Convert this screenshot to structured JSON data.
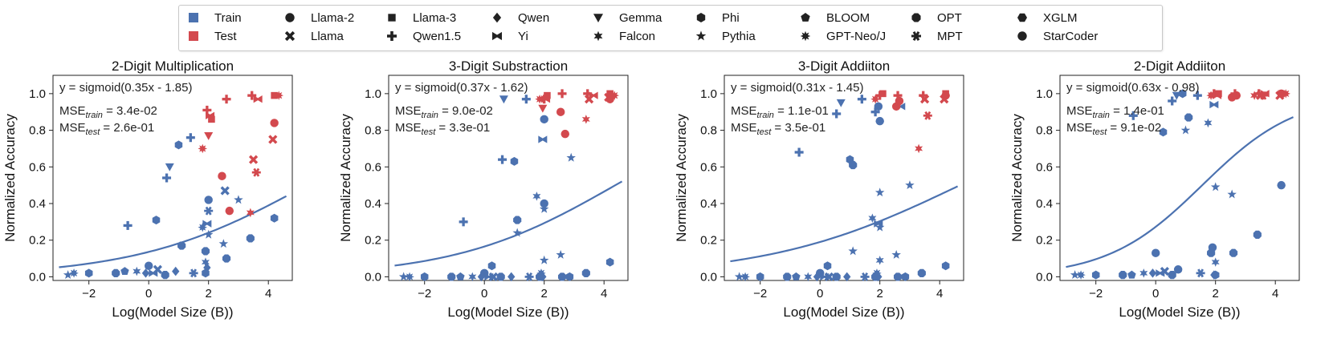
{
  "colors": {
    "train": "#4C72B0",
    "test": "#D3494E",
    "axis": "#222222",
    "fit": "#4C72B0"
  },
  "legend": {
    "split": [
      {
        "label": "Train",
        "color": "#4C72B0"
      },
      {
        "label": "Test",
        "color": "#D3494E"
      }
    ],
    "models": [
      {
        "label": "Llama-2",
        "marker": "circle"
      },
      {
        "label": "Llama",
        "marker": "x"
      },
      {
        "label": "Llama-3",
        "marker": "square"
      },
      {
        "label": "Qwen1.5",
        "marker": "plus"
      },
      {
        "label": "Qwen",
        "marker": "diamond"
      },
      {
        "label": "Yi",
        "marker": "bowtie"
      },
      {
        "label": "Gemma",
        "marker": "triangle-down"
      },
      {
        "label": "Falcon",
        "marker": "star6"
      },
      {
        "label": "Phi",
        "marker": "hexagon"
      },
      {
        "label": "Pythia",
        "marker": "star5"
      },
      {
        "label": "BLOOM",
        "marker": "pentagon"
      },
      {
        "label": "GPT-Neo/J",
        "marker": "star8"
      },
      {
        "label": "OPT",
        "marker": "octagon"
      },
      {
        "label": "MPT",
        "marker": "asterisk"
      },
      {
        "label": "XGLM",
        "marker": "hexagon2"
      },
      {
        "label": "StarCoder",
        "marker": "circle"
      }
    ]
  },
  "chart_data": [
    {
      "type": "scatter",
      "title": "2-Digit Multiplication",
      "xlabel": "Log(Model Size (B))",
      "ylabel": "Normalized Accuracy",
      "xlim": [
        -3.2,
        4.8
      ],
      "ylim": [
        -0.02,
        1.1
      ],
      "xticks": [
        -2,
        0,
        2,
        4
      ],
      "xtick_labels": [
        "−2",
        "0",
        "2",
        "4"
      ],
      "yticks": [
        0.0,
        0.2,
        0.4,
        0.6,
        0.8,
        1.0
      ],
      "ytick_labels": [
        "0.0",
        "0.2",
        "0.4",
        "0.6",
        "0.8",
        "1.0"
      ],
      "fit": {
        "a": 0.35,
        "b": -1.85,
        "x_range": [
          -3.0,
          4.6
        ]
      },
      "annotation": {
        "formula": "y = sigmoid(0.35x - 1.85)",
        "mse_train": "= 3.4e-02",
        "mse_test": "= 2.6e-01"
      },
      "train": [
        [
          -2.7,
          0.01,
          "star5"
        ],
        [
          -2.5,
          0.02,
          "star8"
        ],
        [
          -2.0,
          0.02,
          "hexagon"
        ],
        [
          -1.1,
          0.02,
          "octagon"
        ],
        [
          -0.8,
          0.03,
          "pentagon"
        ],
        [
          -0.7,
          0.28,
          "plus"
        ],
        [
          -0.4,
          0.03,
          "star6"
        ],
        [
          -0.1,
          0.02,
          "diamond"
        ],
        [
          0.0,
          0.06,
          "circle"
        ],
        [
          0.15,
          0.02,
          "bowtie"
        ],
        [
          0.25,
          0.31,
          "hexagon"
        ],
        [
          0.3,
          0.04,
          "x"
        ],
        [
          0.55,
          0.01,
          "octagon"
        ],
        [
          0.6,
          0.54,
          "plus"
        ],
        [
          0.7,
          0.6,
          "triangle-down"
        ],
        [
          0.9,
          0.03,
          "diamond"
        ],
        [
          1.0,
          0.72,
          "hexagon"
        ],
        [
          1.1,
          0.17,
          "octagon"
        ],
        [
          1.4,
          0.76,
          "plus"
        ],
        [
          1.5,
          0.02,
          "asterisk"
        ],
        [
          1.8,
          0.27,
          "star8"
        ],
        [
          1.9,
          0.14,
          "octagon"
        ],
        [
          1.9,
          0.08,
          "star6"
        ],
        [
          1.9,
          0.02,
          "hexagon"
        ],
        [
          1.95,
          0.05,
          "diamond"
        ],
        [
          1.95,
          0.29,
          "bowtie"
        ],
        [
          2.0,
          0.36,
          "asterisk"
        ],
        [
          2.0,
          0.42,
          "circle"
        ],
        [
          2.0,
          0.23,
          "star5"
        ],
        [
          2.5,
          0.18,
          "star5"
        ],
        [
          2.55,
          0.47,
          "x"
        ],
        [
          2.6,
          0.1,
          "octagon"
        ],
        [
          3.0,
          0.42,
          "star5"
        ],
        [
          3.4,
          0.21,
          "octagon"
        ],
        [
          4.2,
          0.32,
          "hexagon"
        ]
      ],
      "test": [
        [
          1.8,
          0.7,
          "star8"
        ],
        [
          1.95,
          0.91,
          "plus"
        ],
        [
          2.0,
          0.77,
          "triangle-down"
        ],
        [
          2.05,
          0.88,
          "bowtie"
        ],
        [
          2.1,
          0.86,
          "square"
        ],
        [
          2.45,
          0.55,
          "circle"
        ],
        [
          2.6,
          0.97,
          "plus"
        ],
        [
          2.7,
          0.36,
          "circle"
        ],
        [
          3.4,
          0.35,
          "star6"
        ],
        [
          3.45,
          0.99,
          "plus"
        ],
        [
          3.5,
          0.64,
          "x"
        ],
        [
          3.6,
          0.57,
          "asterisk"
        ],
        [
          3.65,
          0.97,
          "bowtie"
        ],
        [
          4.15,
          0.75,
          "x"
        ],
        [
          4.2,
          0.84,
          "circle"
        ],
        [
          4.2,
          0.99,
          "square"
        ],
        [
          4.35,
          0.99,
          "star8"
        ]
      ]
    },
    {
      "type": "scatter",
      "title": "3-Digit Substraction",
      "xlabel": "Log(Model Size (B))",
      "ylabel": "Normalized Accuracy",
      "xlim": [
        -3.2,
        4.8
      ],
      "ylim": [
        -0.02,
        1.1
      ],
      "xticks": [
        -2,
        0,
        2,
        4
      ],
      "xtick_labels": [
        "−2",
        "0",
        "2",
        "4"
      ],
      "yticks": [
        0.0,
        0.2,
        0.4,
        0.6,
        0.8,
        1.0
      ],
      "ytick_labels": [
        "0.0",
        "0.2",
        "0.4",
        "0.6",
        "0.8",
        "1.0"
      ],
      "fit": {
        "a": 0.37,
        "b": -1.62,
        "x_range": [
          -3.0,
          4.6
        ]
      },
      "annotation": {
        "formula": "y = sigmoid(0.37x - 1.62)",
        "mse_train": "= 9.0e-02",
        "mse_test": "= 3.3e-01"
      },
      "train": [
        [
          -2.7,
          0.0,
          "star5"
        ],
        [
          -2.5,
          0.0,
          "star8"
        ],
        [
          -2.0,
          0.0,
          "hexagon"
        ],
        [
          -1.1,
          0.0,
          "octagon"
        ],
        [
          -0.8,
          0.0,
          "pentagon"
        ],
        [
          -0.7,
          0.3,
          "plus"
        ],
        [
          -0.4,
          0.0,
          "star6"
        ],
        [
          -0.1,
          0.0,
          "diamond"
        ],
        [
          0.0,
          0.02,
          "circle"
        ],
        [
          0.15,
          0.0,
          "bowtie"
        ],
        [
          0.25,
          0.06,
          "hexagon"
        ],
        [
          0.3,
          0.0,
          "x"
        ],
        [
          0.55,
          0.0,
          "octagon"
        ],
        [
          0.6,
          0.64,
          "plus"
        ],
        [
          0.9,
          0.0,
          "diamond"
        ],
        [
          1.0,
          0.63,
          "hexagon"
        ],
        [
          1.1,
          0.31,
          "octagon"
        ],
        [
          1.1,
          0.24,
          "star5"
        ],
        [
          1.4,
          0.97,
          "plus"
        ],
        [
          1.5,
          0.0,
          "asterisk"
        ],
        [
          1.75,
          0.44,
          "star6"
        ],
        [
          1.85,
          0.0,
          "octagon"
        ],
        [
          1.9,
          0.02,
          "star8"
        ],
        [
          1.95,
          0.0,
          "diamond"
        ],
        [
          1.95,
          0.75,
          "bowtie"
        ],
        [
          2.0,
          0.4,
          "circle"
        ],
        [
          2.0,
          0.86,
          "circle"
        ],
        [
          2.0,
          0.37,
          "star5"
        ],
        [
          2.0,
          0.09,
          "star5"
        ],
        [
          2.55,
          0.12,
          "star5"
        ],
        [
          2.6,
          0.0,
          "octagon"
        ],
        [
          2.85,
          0.0,
          "hexagon"
        ],
        [
          2.9,
          0.65,
          "star5"
        ],
        [
          3.4,
          0.02,
          "octagon"
        ],
        [
          4.2,
          0.08,
          "hexagon"
        ],
        [
          0.65,
          0.97,
          "triangle-down"
        ]
      ],
      "test": [
        [
          1.85,
          0.97,
          "star8"
        ],
        [
          1.95,
          0.92,
          "triangle-down"
        ],
        [
          2.0,
          0.97,
          "plus"
        ],
        [
          2.05,
          0.97,
          "bowtie"
        ],
        [
          2.1,
          0.99,
          "square"
        ],
        [
          2.55,
          0.9,
          "circle"
        ],
        [
          2.6,
          1.0,
          "plus"
        ],
        [
          2.7,
          0.78,
          "circle"
        ],
        [
          3.4,
          0.86,
          "star6"
        ],
        [
          3.45,
          1.0,
          "plus"
        ],
        [
          3.5,
          0.97,
          "x"
        ],
        [
          3.65,
          0.99,
          "bowtie"
        ],
        [
          4.15,
          0.98,
          "x"
        ],
        [
          4.2,
          0.97,
          "circle"
        ],
        [
          4.2,
          1.0,
          "square"
        ],
        [
          4.35,
          0.99,
          "star8"
        ]
      ]
    },
    {
      "type": "scatter",
      "title": "3-Digit Addiiton",
      "xlabel": "Log(Model Size (B))",
      "ylabel": "Normalized Accuracy",
      "xlim": [
        -3.2,
        4.8
      ],
      "ylim": [
        -0.02,
        1.1
      ],
      "xticks": [
        -2,
        0,
        2,
        4
      ],
      "xtick_labels": [
        "−2",
        "0",
        "2",
        "4"
      ],
      "yticks": [
        0.0,
        0.2,
        0.4,
        0.6,
        0.8,
        1.0
      ],
      "ytick_labels": [
        "0.0",
        "0.2",
        "0.4",
        "0.6",
        "0.8",
        "1.0"
      ],
      "fit": {
        "a": 0.31,
        "b": -1.45,
        "x_range": [
          -3.0,
          4.6
        ]
      },
      "annotation": {
        "formula": "y = sigmoid(0.31x - 1.45)",
        "mse_train": "= 1.1e-01",
        "mse_test": "= 3.5e-01"
      },
      "train": [
        [
          -2.7,
          0.0,
          "star5"
        ],
        [
          -2.5,
          0.0,
          "star8"
        ],
        [
          -2.0,
          0.0,
          "hexagon"
        ],
        [
          -1.1,
          0.0,
          "octagon"
        ],
        [
          -0.8,
          0.0,
          "pentagon"
        ],
        [
          -0.7,
          0.68,
          "plus"
        ],
        [
          -0.4,
          0.0,
          "star6"
        ],
        [
          -0.1,
          0.0,
          "diamond"
        ],
        [
          0.0,
          0.02,
          "circle"
        ],
        [
          0.15,
          0.0,
          "bowtie"
        ],
        [
          0.25,
          0.06,
          "hexagon"
        ],
        [
          0.3,
          0.0,
          "x"
        ],
        [
          0.55,
          0.0,
          "octagon"
        ],
        [
          0.55,
          0.89,
          "plus"
        ],
        [
          0.7,
          0.95,
          "triangle-down"
        ],
        [
          0.9,
          0.0,
          "diamond"
        ],
        [
          1.0,
          0.64,
          "hexagon"
        ],
        [
          1.1,
          0.61,
          "octagon"
        ],
        [
          1.1,
          0.14,
          "star5"
        ],
        [
          1.4,
          0.97,
          "plus"
        ],
        [
          1.5,
          0.0,
          "asterisk"
        ],
        [
          1.75,
          0.32,
          "star6"
        ],
        [
          1.85,
          0.0,
          "octagon"
        ],
        [
          1.9,
          0.02,
          "star8"
        ],
        [
          1.95,
          0.0,
          "diamond"
        ],
        [
          1.95,
          0.29,
          "bowtie"
        ],
        [
          1.95,
          0.93,
          "circle"
        ],
        [
          2.0,
          0.85,
          "circle"
        ],
        [
          2.0,
          0.46,
          "star5"
        ],
        [
          2.0,
          0.27,
          "star5"
        ],
        [
          2.0,
          0.09,
          "star6"
        ],
        [
          2.55,
          0.12,
          "star5"
        ],
        [
          2.6,
          0.0,
          "octagon"
        ],
        [
          2.85,
          0.0,
          "hexagon"
        ],
        [
          3.0,
          0.5,
          "star5"
        ],
        [
          3.4,
          0.02,
          "octagon"
        ],
        [
          4.2,
          0.06,
          "hexagon"
        ],
        [
          1.85,
          0.9,
          "plus"
        ],
        [
          2.7,
          0.93,
          "bowtie"
        ]
      ],
      "test": [
        [
          1.85,
          0.97,
          "star8"
        ],
        [
          2.0,
          0.99,
          "plus"
        ],
        [
          2.1,
          1.0,
          "square"
        ],
        [
          2.55,
          0.93,
          "circle"
        ],
        [
          2.65,
          0.96,
          "circle"
        ],
        [
          2.6,
          0.99,
          "plus"
        ],
        [
          3.3,
          0.7,
          "star6"
        ],
        [
          3.45,
          0.99,
          "plus"
        ],
        [
          3.5,
          0.97,
          "x"
        ],
        [
          3.6,
          0.88,
          "asterisk"
        ],
        [
          4.15,
          0.97,
          "x"
        ],
        [
          4.2,
          0.99,
          "circle"
        ],
        [
          4.2,
          1.0,
          "square"
        ]
      ]
    },
    {
      "type": "scatter",
      "title": "2-Digit Addiiton",
      "xlabel": "Log(Model Size (B))",
      "ylabel": "Normalized Accuracy",
      "xlim": [
        -3.2,
        4.8
      ],
      "ylim": [
        -0.02,
        1.1
      ],
      "xticks": [
        -2,
        0,
        2,
        4
      ],
      "xtick_labels": [
        "−2",
        "0",
        "2",
        "4"
      ],
      "yticks": [
        0.0,
        0.2,
        0.4,
        0.6,
        0.8,
        1.0
      ],
      "ytick_labels": [
        "0.0",
        "0.2",
        "0.4",
        "0.6",
        "0.8",
        "1.0"
      ],
      "fit": {
        "a": 0.63,
        "b": -0.98,
        "x_range": [
          -3.0,
          4.6
        ]
      },
      "annotation": {
        "formula": "y = sigmoid(0.63x - 0.98)",
        "mse_train": "= 1.4e-01",
        "mse_test": "= 9.1e-02"
      },
      "train": [
        [
          -2.7,
          0.01,
          "star5"
        ],
        [
          -2.5,
          0.01,
          "star8"
        ],
        [
          -2.0,
          0.01,
          "hexagon"
        ],
        [
          -1.1,
          0.01,
          "octagon"
        ],
        [
          -0.8,
          0.01,
          "pentagon"
        ],
        [
          -0.75,
          0.88,
          "plus"
        ],
        [
          -0.4,
          0.02,
          "star6"
        ],
        [
          -0.1,
          0.02,
          "diamond"
        ],
        [
          0.0,
          0.13,
          "circle"
        ],
        [
          0.15,
          0.02,
          "bowtie"
        ],
        [
          0.25,
          0.79,
          "hexagon"
        ],
        [
          0.3,
          0.03,
          "x"
        ],
        [
          0.55,
          0.01,
          "octagon"
        ],
        [
          0.55,
          0.96,
          "plus"
        ],
        [
          0.7,
          0.99,
          "triangle-down"
        ],
        [
          0.9,
          1.0,
          "hexagon"
        ],
        [
          1.0,
          0.8,
          "star5"
        ],
        [
          1.1,
          0.87,
          "octagon"
        ],
        [
          1.4,
          0.99,
          "plus"
        ],
        [
          1.5,
          0.02,
          "asterisk"
        ],
        [
          1.75,
          0.84,
          "star6"
        ],
        [
          1.85,
          0.13,
          "octagon"
        ],
        [
          1.9,
          0.16,
          "circle"
        ],
        [
          1.95,
          0.01,
          "diamond"
        ],
        [
          1.95,
          0.94,
          "bowtie"
        ],
        [
          2.0,
          0.49,
          "star5"
        ],
        [
          2.0,
          0.08,
          "star6"
        ],
        [
          2.0,
          0.01,
          "hexagon"
        ],
        [
          2.55,
          0.45,
          "star5"
        ],
        [
          2.6,
          0.13,
          "octagon"
        ],
        [
          3.4,
          0.23,
          "octagon"
        ],
        [
          4.2,
          0.5,
          "circle"
        ],
        [
          0.75,
          0.04,
          "circle"
        ]
      ],
      "test": [
        [
          1.85,
          0.99,
          "star8"
        ],
        [
          1.95,
          1.0,
          "plus"
        ],
        [
          2.05,
          0.99,
          "bowtie"
        ],
        [
          2.1,
          1.0,
          "square"
        ],
        [
          2.55,
          0.98,
          "circle"
        ],
        [
          2.7,
          0.99,
          "circle"
        ],
        [
          2.65,
          1.0,
          "plus"
        ],
        [
          3.3,
          0.99,
          "star6"
        ],
        [
          3.45,
          1.0,
          "plus"
        ],
        [
          3.5,
          0.99,
          "x"
        ],
        [
          3.6,
          0.99,
          "asterisk"
        ],
        [
          3.65,
          1.0,
          "bowtie"
        ],
        [
          4.15,
          0.99,
          "x"
        ],
        [
          4.2,
          1.0,
          "circle"
        ],
        [
          4.2,
          1.0,
          "square"
        ],
        [
          4.35,
          1.0,
          "star8"
        ]
      ]
    }
  ]
}
